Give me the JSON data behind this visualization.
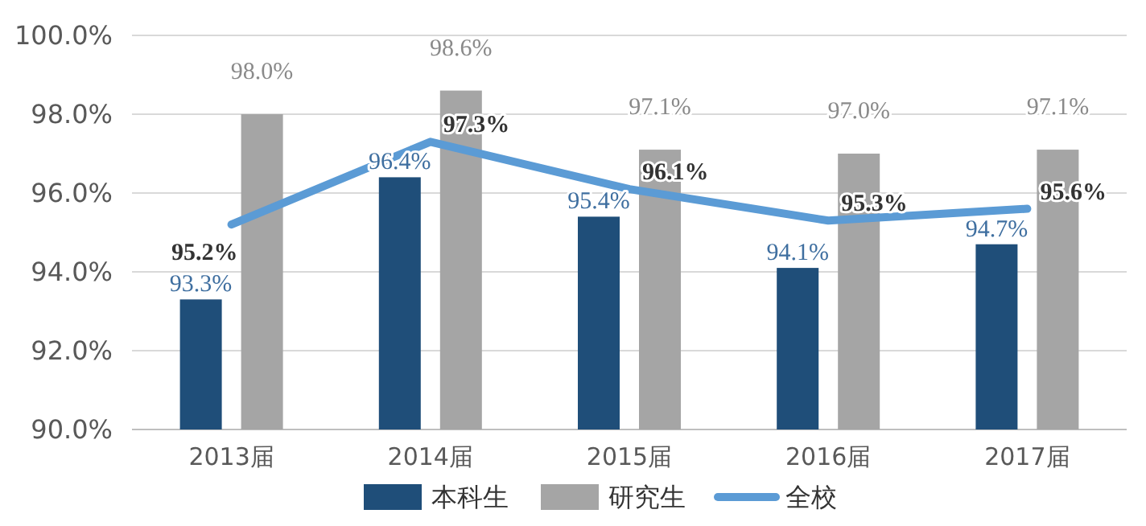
{
  "chart_data": {
    "type": "bar",
    "categories": [
      "2013届",
      "2014届",
      "2015届",
      "2016届",
      "2017届"
    ],
    "series": [
      {
        "name": "本科生",
        "color": "#1f4e79",
        "values": [
          93.3,
          96.4,
          95.4,
          94.1,
          94.7
        ],
        "value_labels": [
          "93.3%",
          "96.4%",
          "95.4%",
          "94.1%",
          "94.7%"
        ]
      },
      {
        "name": "研究生",
        "color": "#a5a5a5",
        "values": [
          98.0,
          98.6,
          97.1,
          97.0,
          97.1
        ],
        "value_labels": [
          "98.0%",
          "98.6%",
          "97.1%",
          "97.0%",
          "97.1%"
        ]
      },
      {
        "name": "全校",
        "type": "line",
        "color": "#5b9bd5",
        "values": [
          95.2,
          97.3,
          96.1,
          95.3,
          95.6
        ],
        "value_labels": [
          "95.2%",
          "97.3%",
          "96.1%",
          "95.3%",
          "95.6%"
        ]
      }
    ],
    "ylim": [
      90,
      100
    ],
    "yticks": [
      {
        "value": 90,
        "label": "90.0%"
      },
      {
        "value": 92,
        "label": "92.0%"
      },
      {
        "value": 94,
        "label": "94.0%"
      },
      {
        "value": 96,
        "label": "96.0%"
      },
      {
        "value": 98,
        "label": "98.0%"
      },
      {
        "value": 100,
        "label": "100.0%"
      }
    ],
    "grid": "y",
    "legend": "bottom",
    "marker": "none",
    "line_style": "solid"
  }
}
